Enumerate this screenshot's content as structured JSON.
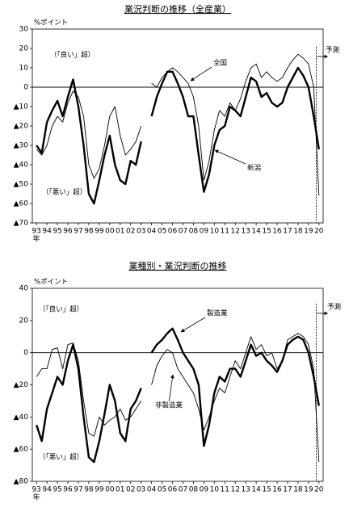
{
  "chart_data": [
    {
      "type": "line",
      "title": "業況判断の推移（全産業）",
      "y_label": "%ポイント",
      "x_unit": "年",
      "x": [
        1993,
        1993.5,
        1994,
        1994.5,
        1995,
        1995.5,
        1996,
        1996.5,
        1997,
        1997.5,
        1998,
        1998.5,
        1999,
        1999.5,
        2000,
        2000.5,
        2001,
        2001.5,
        2002,
        2002.5,
        2003,
        2003.5,
        2004,
        2004.5,
        2005,
        2005.5,
        2006,
        2006.5,
        2007,
        2007.5,
        2008,
        2008.5,
        2009,
        2009.5,
        2010,
        2010.5,
        2011,
        2011.5,
        2012,
        2012.5,
        2013,
        2013.5,
        2014,
        2014.5,
        2015,
        2015.5,
        2016,
        2016.5,
        2017,
        2017.5,
        2018,
        2018.5,
        2019,
        2019.5,
        2020
      ],
      "series": [
        {
          "name": "全国",
          "color": "#000000",
          "width": 0.9,
          "values": [
            -32,
            -35,
            -30,
            -20,
            -15,
            -18,
            -8,
            -2,
            -5,
            -15,
            -40,
            -47,
            -42,
            -30,
            -15,
            -10,
            -25,
            -35,
            -32,
            -28,
            -20,
            null,
            2,
            0,
            5,
            8,
            10,
            8,
            5,
            2,
            -5,
            -20,
            -48,
            -38,
            -22,
            -12,
            -15,
            -8,
            -12,
            -6,
            3,
            10,
            12,
            5,
            8,
            5,
            3,
            5,
            10,
            14,
            17,
            15,
            12,
            0,
            -56
          ]
        },
        {
          "name": "新潟",
          "color": "#000000",
          "width": 2.4,
          "values": [
            -30,
            -34,
            -18,
            -12,
            -7,
            -15,
            -5,
            4,
            -10,
            -30,
            -55,
            -60,
            -48,
            -35,
            -25,
            -40,
            -48,
            -50,
            -38,
            -40,
            -28,
            null,
            -15,
            -5,
            2,
            8,
            8,
            2,
            -5,
            -15,
            -15,
            -35,
            -54,
            -45,
            -30,
            -22,
            -20,
            -10,
            -12,
            -15,
            -5,
            5,
            3,
            -5,
            -3,
            -8,
            -10,
            -8,
            0,
            5,
            10,
            6,
            0,
            -15,
            -32
          ]
        }
      ],
      "annotations": [
        "（「良い」超）",
        "（「悪い」超）",
        "全国",
        "新潟",
        "予測"
      ],
      "forecast_start": 2019.75,
      "xlim": [
        1992.6,
        2020.4
      ],
      "xticks": [
        {
          "value": 1993,
          "label": "93"
        },
        {
          "value": 1994,
          "label": "94"
        },
        {
          "value": 1995,
          "label": "95"
        },
        {
          "value": 1996,
          "label": "96"
        },
        {
          "value": 1997,
          "label": "97"
        },
        {
          "value": 1998,
          "label": "98"
        },
        {
          "value": 1999,
          "label": "99"
        },
        {
          "value": 2000,
          "label": "00"
        },
        {
          "value": 2001,
          "label": "01"
        },
        {
          "value": 2002,
          "label": "02"
        },
        {
          "value": 2003,
          "label": "03"
        },
        {
          "value": 2004,
          "label": "04"
        },
        {
          "value": 2005,
          "label": "05"
        },
        {
          "value": 2006,
          "label": "06"
        },
        {
          "value": 2007,
          "label": "07"
        },
        {
          "value": 2008,
          "label": "08"
        },
        {
          "value": 2009,
          "label": "09"
        },
        {
          "value": 2010,
          "label": "10"
        },
        {
          "value": 2011,
          "label": "11"
        },
        {
          "value": 2012,
          "label": "12"
        },
        {
          "value": 2013,
          "label": "13"
        },
        {
          "value": 2014,
          "label": "14"
        },
        {
          "value": 2015,
          "label": "15"
        },
        {
          "value": 2016,
          "label": "16"
        },
        {
          "value": 2017,
          "label": "17"
        },
        {
          "value": 2018,
          "label": "18"
        },
        {
          "value": 2019,
          "label": "19"
        },
        {
          "value": 2020,
          "label": "20"
        }
      ],
      "ylim": [
        -70,
        30
      ],
      "yticks": [
        30,
        20,
        10,
        0,
        {
          "value": -10,
          "label": "▲10"
        },
        {
          "value": -20,
          "label": "▲20"
        },
        {
          "value": -30,
          "label": "▲30"
        },
        {
          "value": -40,
          "label": "▲40"
        },
        {
          "value": -50,
          "label": "▲50"
        },
        {
          "value": -60,
          "label": "▲60"
        },
        {
          "value": -70,
          "label": "▲70"
        }
      ],
      "negative_label_color": "#e00000"
    },
    {
      "type": "line",
      "title": "業種別・業況判断の推移",
      "y_label": "%ポイント",
      "x_unit": "年",
      "x": [
        1993,
        1993.5,
        1994,
        1994.5,
        1995,
        1995.5,
        1996,
        1996.5,
        1997,
        1997.5,
        1998,
        1998.5,
        1999,
        1999.5,
        2000,
        2000.5,
        2001,
        2001.5,
        2002,
        2002.5,
        2003,
        2003.5,
        2004,
        2004.5,
        2005,
        2005.5,
        2006,
        2006.5,
        2007,
        2007.5,
        2008,
        2008.5,
        2009,
        2009.5,
        2010,
        2010.5,
        2011,
        2011.5,
        2012,
        2012.5,
        2013,
        2013.5,
        2014,
        2014.5,
        2015,
        2015.5,
        2016,
        2016.5,
        2017,
        2017.5,
        2018,
        2018.5,
        2019,
        2019.5,
        2020
      ],
      "series": [
        {
          "name": "製造業",
          "color": "#000000",
          "width": 2.4,
          "values": [
            -45,
            -55,
            -35,
            -25,
            -15,
            -20,
            -5,
            5,
            -10,
            -40,
            -65,
            -68,
            -55,
            -38,
            -20,
            -30,
            -50,
            -55,
            -35,
            -30,
            -22,
            null,
            0,
            5,
            8,
            12,
            15,
            8,
            0,
            -5,
            -10,
            -20,
            -58,
            -45,
            -25,
            -15,
            -18,
            -10,
            -10,
            -15,
            -5,
            5,
            -2,
            0,
            -5,
            -8,
            -12,
            -5,
            5,
            8,
            10,
            8,
            0,
            -15,
            -33
          ]
        },
        {
          "name": "非製造業",
          "color": "#000000",
          "width": 0.9,
          "values": [
            -15,
            -10,
            -10,
            2,
            3,
            -10,
            5,
            6,
            -5,
            -30,
            -50,
            -52,
            -40,
            -45,
            -42,
            -40,
            -35,
            -42,
            -40,
            -35,
            -30,
            null,
            -20,
            -8,
            -2,
            2,
            0,
            -10,
            -15,
            -20,
            -25,
            -35,
            -48,
            -40,
            -30,
            -22,
            -25,
            -15,
            -5,
            -10,
            0,
            10,
            2,
            5,
            -2,
            0,
            -10,
            -5,
            8,
            10,
            12,
            10,
            5,
            -10,
            -68
          ]
        }
      ],
      "annotations": [
        "（「良い」超）",
        "（「悪い」超）",
        "製造業",
        "非製造業",
        "予測"
      ],
      "forecast_start": 2019.75,
      "xlim": [
        1992.6,
        2020.4
      ],
      "xticks": [
        {
          "value": 1993,
          "label": "93"
        },
        {
          "value": 1994,
          "label": "94"
        },
        {
          "value": 1995,
          "label": "95"
        },
        {
          "value": 1996,
          "label": "96"
        },
        {
          "value": 1997,
          "label": "97"
        },
        {
          "value": 1998,
          "label": "98"
        },
        {
          "value": 1999,
          "label": "99"
        },
        {
          "value": 2000,
          "label": "00"
        },
        {
          "value": 2001,
          "label": "01"
        },
        {
          "value": 2002,
          "label": "02"
        },
        {
          "value": 2003,
          "label": "03"
        },
        {
          "value": 2004,
          "label": "04"
        },
        {
          "value": 2005,
          "label": "05"
        },
        {
          "value": 2006,
          "label": "06"
        },
        {
          "value": 2007,
          "label": "07"
        },
        {
          "value": 2008,
          "label": "08"
        },
        {
          "value": 2009,
          "label": "09"
        },
        {
          "value": 2010,
          "label": "10"
        },
        {
          "value": 2011,
          "label": "11"
        },
        {
          "value": 2012,
          "label": "12"
        },
        {
          "value": 2013,
          "label": "13"
        },
        {
          "value": 2014,
          "label": "14"
        },
        {
          "value": 2015,
          "label": "15"
        },
        {
          "value": 2016,
          "label": "16"
        },
        {
          "value": 2017,
          "label": "17"
        },
        {
          "value": 2018,
          "label": "18"
        },
        {
          "value": 2019,
          "label": "19"
        },
        {
          "value": 2020,
          "label": "20"
        }
      ],
      "ylim": [
        -80,
        40
      ],
      "yticks": [
        40,
        20,
        0,
        {
          "value": -20,
          "label": "▲20"
        },
        {
          "value": -40,
          "label": "▲40"
        },
        {
          "value": -60,
          "label": "▲60"
        },
        {
          "value": -80,
          "label": "▲80"
        }
      ],
      "negative_label_color": "#e00000"
    }
  ]
}
